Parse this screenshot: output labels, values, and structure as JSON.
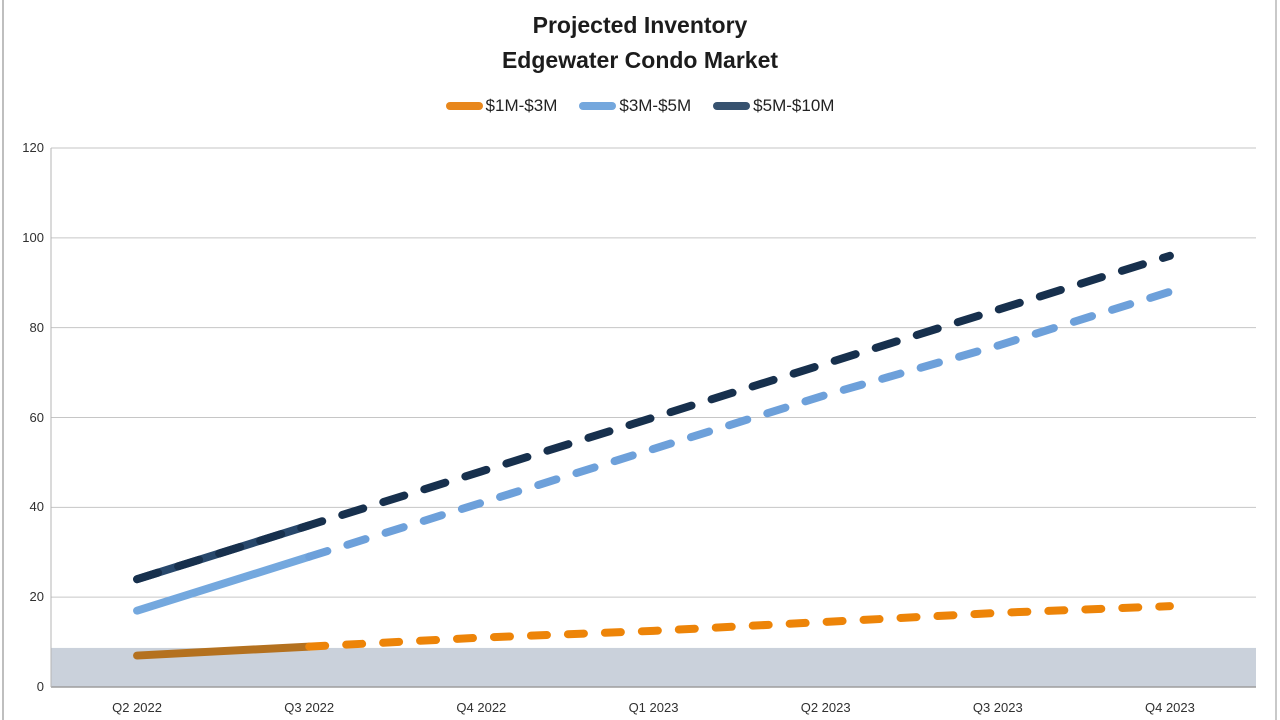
{
  "title": {
    "line1": "Projected Inventory",
    "line2": "Edgewater Condo Market"
  },
  "legend": {
    "items": [
      {
        "label": "$1M-$3M",
        "color": "#E8871C"
      },
      {
        "label": "$3M-$5M",
        "color": "#74A7DD"
      },
      {
        "label": "$5M-$10M",
        "color": "#37526F"
      }
    ]
  },
  "chart_data": {
    "type": "line",
    "title": "Projected Inventory - Edgewater Condo Market",
    "categories": [
      "Q2 2022",
      "Q3 2022",
      "Q4 2022",
      "Q1 2023",
      "Q2 2023",
      "Q3 2023",
      "Q4 2023"
    ],
    "series": [
      {
        "name": "$1M-$3M",
        "values": [
          7,
          9,
          11,
          12.5,
          14.5,
          16.5,
          18
        ],
        "solid_color": "#B4711F",
        "dash_color": "#ED8408",
        "dash_visible": [
          24,
          13
        ],
        "dash_overlay_from_start": false
      },
      {
        "name": "$3M-$5M",
        "values": [
          17,
          29,
          41,
          53,
          65,
          76,
          88
        ],
        "solid_color": "#74A8DE",
        "dash_color": "#6DA0DA",
        "dash_visible": [
          27,
          13
        ],
        "dash_overlay_from_start": false
      },
      {
        "name": "$5M-$10M",
        "values": [
          24,
          36,
          48,
          60,
          72,
          84,
          96
        ],
        "solid_color": "#28486C",
        "dash_color": "#17304D",
        "dash_visible": [
          30,
          13
        ],
        "dash_overlay_from_start": true
      }
    ],
    "solid_until_index": 1,
    "ylim": [
      0,
      120
    ],
    "yticks": [
      0,
      20,
      40,
      60,
      80,
      100,
      120
    ],
    "band": {
      "from": 0,
      "to": 8.7,
      "color": "#CAD1DB"
    },
    "grid": true,
    "legend_position": "top",
    "line_width": 8
  },
  "colors": {
    "gridline": "#C6C6C6",
    "zero_axis": "#9E9E9E",
    "left_axis": "#B5B5B5",
    "tick_text": "#303030"
  }
}
